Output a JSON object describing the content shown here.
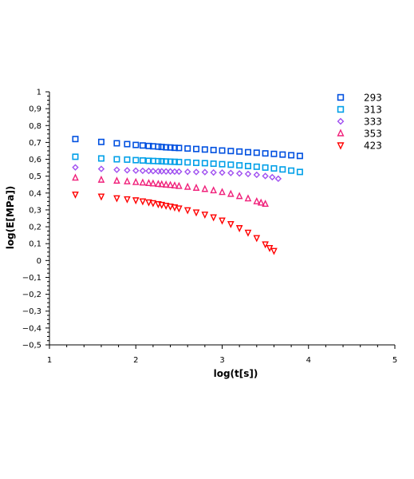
{
  "chart_data": {
    "type": "scatter",
    "title": "",
    "xlabel": "log(t[s])",
    "ylabel": "log(E[MPa])",
    "xlim": [
      1,
      5
    ],
    "ylim": [
      -0.5,
      1
    ],
    "x_ticks": [
      "1",
      "2",
      "3",
      "4",
      "5"
    ],
    "y_ticks": [
      "−0,5",
      "−0,4",
      "−0,3",
      "−0,2",
      "−0,1",
      "0",
      "0,1",
      "0,2",
      "0,3",
      "0,4",
      "0,5",
      "0,6",
      "0,7",
      "0,8",
      "0,9",
      "1"
    ],
    "grid": false,
    "legend_position": "top-right",
    "series": [
      {
        "name": "293",
        "marker": "square",
        "color": "#0050e0",
        "x": [
          1.3,
          1.6,
          1.78,
          1.9,
          2.0,
          2.08,
          2.15,
          2.2,
          2.26,
          2.3,
          2.35,
          2.4,
          2.45,
          2.5,
          2.6,
          2.7,
          2.8,
          2.9,
          3.0,
          3.1,
          3.2,
          3.3,
          3.4,
          3.5,
          3.6,
          3.7,
          3.8,
          3.9
        ],
        "y": [
          0.72,
          0.703,
          0.695,
          0.69,
          0.685,
          0.682,
          0.679,
          0.677,
          0.675,
          0.673,
          0.671,
          0.67,
          0.668,
          0.667,
          0.664,
          0.661,
          0.658,
          0.655,
          0.652,
          0.649,
          0.646,
          0.642,
          0.639,
          0.635,
          0.632,
          0.628,
          0.624,
          0.62
        ]
      },
      {
        "name": "313",
        "marker": "square",
        "color": "#00a0e8",
        "x": [
          1.3,
          1.6,
          1.78,
          1.9,
          2.0,
          2.08,
          2.15,
          2.2,
          2.26,
          2.3,
          2.35,
          2.4,
          2.45,
          2.5,
          2.6,
          2.7,
          2.8,
          2.9,
          3.0,
          3.1,
          3.2,
          3.3,
          3.4,
          3.5,
          3.6,
          3.7,
          3.8,
          3.9
        ],
        "y": [
          0.615,
          0.605,
          0.6,
          0.598,
          0.595,
          0.593,
          0.591,
          0.59,
          0.589,
          0.588,
          0.587,
          0.586,
          0.585,
          0.584,
          0.582,
          0.579,
          0.577,
          0.574,
          0.571,
          0.568,
          0.564,
          0.56,
          0.556,
          0.551,
          0.546,
          0.54,
          0.533,
          0.525
        ]
      },
      {
        "name": "333",
        "marker": "diamond",
        "color": "#a050f0",
        "x": [
          1.3,
          1.6,
          1.78,
          1.9,
          2.0,
          2.08,
          2.15,
          2.2,
          2.26,
          2.3,
          2.35,
          2.4,
          2.45,
          2.5,
          2.6,
          2.7,
          2.8,
          2.9,
          3.0,
          3.1,
          3.2,
          3.3,
          3.4,
          3.5,
          3.58,
          3.65
        ],
        "y": [
          0.552,
          0.543,
          0.538,
          0.535,
          0.533,
          0.532,
          0.531,
          0.53,
          0.529,
          0.529,
          0.528,
          0.528,
          0.527,
          0.527,
          0.526,
          0.525,
          0.524,
          0.522,
          0.521,
          0.519,
          0.516,
          0.513,
          0.508,
          0.501,
          0.494,
          0.485
        ]
      },
      {
        "name": "353",
        "marker": "triangle-up",
        "color": "#f0207a",
        "x": [
          1.3,
          1.6,
          1.78,
          1.9,
          2.0,
          2.08,
          2.15,
          2.2,
          2.26,
          2.3,
          2.35,
          2.4,
          2.45,
          2.5,
          2.6,
          2.7,
          2.8,
          2.9,
          3.0,
          3.1,
          3.2,
          3.3,
          3.4,
          3.45,
          3.5
        ],
        "y": [
          0.49,
          0.478,
          0.472,
          0.468,
          0.464,
          0.461,
          0.458,
          0.456,
          0.453,
          0.451,
          0.449,
          0.447,
          0.444,
          0.441,
          0.436,
          0.43,
          0.423,
          0.415,
          0.405,
          0.394,
          0.381,
          0.367,
          0.35,
          0.342,
          0.335
        ]
      },
      {
        "name": "423",
        "marker": "triangle-down",
        "color": "#ff0000",
        "x": [
          1.3,
          1.6,
          1.78,
          1.9,
          2.0,
          2.08,
          2.15,
          2.2,
          2.26,
          2.3,
          2.35,
          2.4,
          2.45,
          2.5,
          2.6,
          2.7,
          2.8,
          2.9,
          3.0,
          3.1,
          3.2,
          3.3,
          3.4,
          3.5,
          3.55,
          3.6
        ],
        "y": [
          0.392,
          0.38,
          0.37,
          0.364,
          0.358,
          0.352,
          0.346,
          0.341,
          0.335,
          0.331,
          0.326,
          0.321,
          0.316,
          0.31,
          0.299,
          0.286,
          0.273,
          0.257,
          0.238,
          0.217,
          0.193,
          0.166,
          0.134,
          0.097,
          0.075,
          0.058
        ]
      }
    ]
  }
}
